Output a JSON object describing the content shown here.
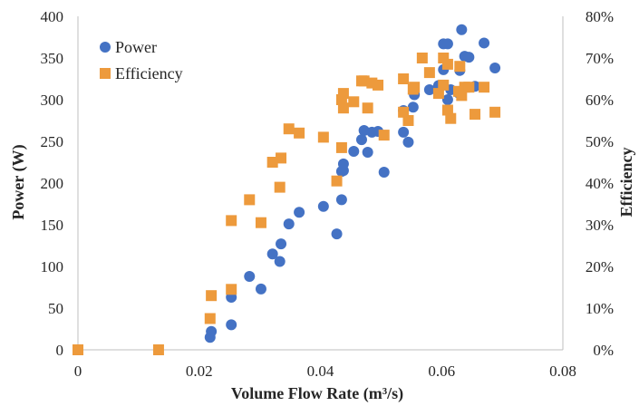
{
  "chart_data": {
    "type": "scatter",
    "title": "",
    "xlabel": "Volume Flow Rate (m³/s)",
    "ylabel": "Power (W)",
    "y2label": "Efficiency",
    "xlim": [
      0,
      0.08
    ],
    "ylim": [
      0,
      400
    ],
    "y2lim": [
      0,
      0.8
    ],
    "x_ticks": [
      "0",
      "0.02",
      "0.04",
      "0.06",
      "0.08"
    ],
    "y_ticks": [
      "0",
      "50",
      "100",
      "150",
      "200",
      "250",
      "300",
      "350",
      "400"
    ],
    "y2_ticks": [
      "0%",
      "10%",
      "20%",
      "30%",
      "40%",
      "50%",
      "60%",
      "70%",
      "80%"
    ],
    "grid": false,
    "legend_position": "top-left",
    "series": [
      {
        "name": "Power",
        "axis": "left",
        "marker": "circle",
        "color": "#4472C4",
        "points": [
          [
            0.0218,
            15
          ],
          [
            0.022,
            22
          ],
          [
            0.0253,
            30
          ],
          [
            0.0253,
            63
          ],
          [
            0.0283,
            88
          ],
          [
            0.0302,
            73
          ],
          [
            0.0321,
            115
          ],
          [
            0.0333,
            106
          ],
          [
            0.0335,
            127
          ],
          [
            0.0348,
            151
          ],
          [
            0.0365,
            165
          ],
          [
            0.0405,
            172
          ],
          [
            0.0427,
            139
          ],
          [
            0.0435,
            180
          ],
          [
            0.0435,
            214
          ],
          [
            0.0438,
            223
          ],
          [
            0.0438,
            215
          ],
          [
            0.0455,
            238
          ],
          [
            0.0468,
            252
          ],
          [
            0.0472,
            263
          ],
          [
            0.0478,
            237
          ],
          [
            0.0485,
            261
          ],
          [
            0.0495,
            262
          ],
          [
            0.0505,
            213
          ],
          [
            0.0537,
            261
          ],
          [
            0.0537,
            287
          ],
          [
            0.0545,
            249
          ],
          [
            0.0553,
            291
          ],
          [
            0.0555,
            306
          ],
          [
            0.058,
            312
          ],
          [
            0.0595,
            317
          ],
          [
            0.0603,
            336
          ],
          [
            0.0603,
            367
          ],
          [
            0.061,
            367
          ],
          [
            0.061,
            300
          ],
          [
            0.0615,
            312
          ],
          [
            0.0628,
            308
          ],
          [
            0.063,
            335
          ],
          [
            0.0633,
            384
          ],
          [
            0.0638,
            352
          ],
          [
            0.0645,
            351
          ],
          [
            0.0655,
            316
          ],
          [
            0.067,
            368
          ],
          [
            0.0688,
            338
          ]
        ]
      },
      {
        "name": "Efficiency",
        "axis": "right",
        "marker": "square",
        "color": "#ED9A3C",
        "points": [
          [
            0,
            0
          ],
          [
            0.0133,
            0
          ],
          [
            0.0218,
            0.075
          ],
          [
            0.022,
            0.13
          ],
          [
            0.0253,
            0.145
          ],
          [
            0.0253,
            0.31
          ],
          [
            0.0283,
            0.36
          ],
          [
            0.0302,
            0.305
          ],
          [
            0.0321,
            0.45
          ],
          [
            0.0333,
            0.39
          ],
          [
            0.0335,
            0.46
          ],
          [
            0.0348,
            0.53
          ],
          [
            0.0365,
            0.52
          ],
          [
            0.0405,
            0.51
          ],
          [
            0.0427,
            0.405
          ],
          [
            0.0435,
            0.485
          ],
          [
            0.0435,
            0.6
          ],
          [
            0.0438,
            0.615
          ],
          [
            0.0438,
            0.58
          ],
          [
            0.0455,
            0.595
          ],
          [
            0.0468,
            0.645
          ],
          [
            0.0472,
            0.645
          ],
          [
            0.0478,
            0.58
          ],
          [
            0.0485,
            0.64
          ],
          [
            0.0495,
            0.635
          ],
          [
            0.0505,
            0.515
          ],
          [
            0.0537,
            0.65
          ],
          [
            0.0537,
            0.57
          ],
          [
            0.0545,
            0.55
          ],
          [
            0.0553,
            0.625
          ],
          [
            0.0555,
            0.63
          ],
          [
            0.0568,
            0.7
          ],
          [
            0.058,
            0.665
          ],
          [
            0.0595,
            0.615
          ],
          [
            0.0603,
            0.635
          ],
          [
            0.0603,
            0.7
          ],
          [
            0.061,
            0.685
          ],
          [
            0.061,
            0.575
          ],
          [
            0.0615,
            0.555
          ],
          [
            0.0628,
            0.62
          ],
          [
            0.063,
            0.68
          ],
          [
            0.0633,
            0.61
          ],
          [
            0.0638,
            0.63
          ],
          [
            0.0645,
            0.63
          ],
          [
            0.0655,
            0.565
          ],
          [
            0.067,
            0.63
          ],
          [
            0.0688,
            0.57
          ]
        ]
      }
    ]
  }
}
